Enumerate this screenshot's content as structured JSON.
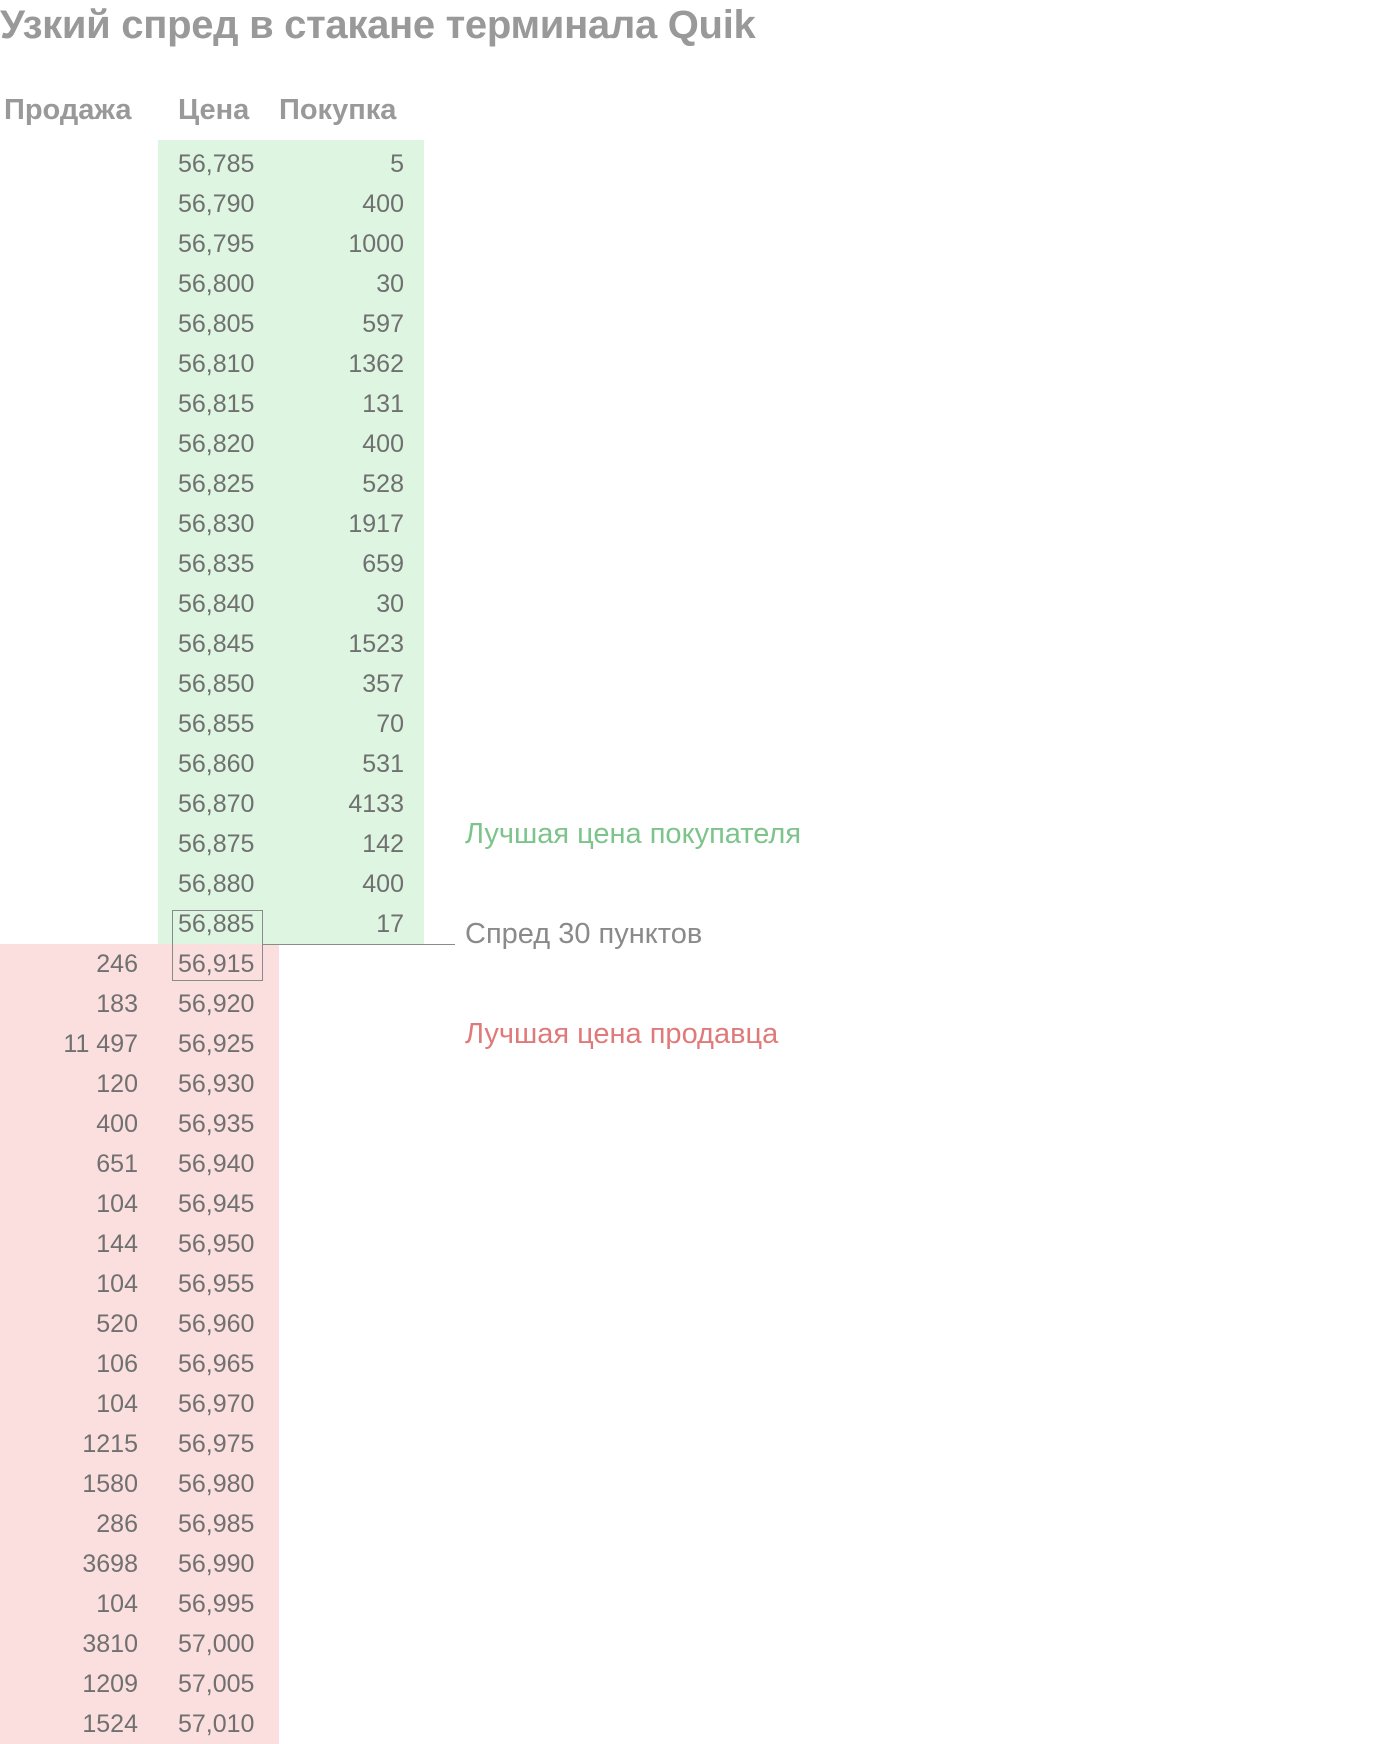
{
  "title": "Узкий спред в стакане терминала Quik",
  "headers": {
    "sell": "Продажа",
    "price": "Цена",
    "buy": "Покупка"
  },
  "bids": [
    {
      "price": "56,785",
      "qty": "5"
    },
    {
      "price": "56,790",
      "qty": "400"
    },
    {
      "price": "56,795",
      "qty": "1000"
    },
    {
      "price": "56,800",
      "qty": "30"
    },
    {
      "price": "56,805",
      "qty": "597"
    },
    {
      "price": "56,810",
      "qty": "1362"
    },
    {
      "price": "56,815",
      "qty": "131"
    },
    {
      "price": "56,820",
      "qty": "400"
    },
    {
      "price": "56,825",
      "qty": "528"
    },
    {
      "price": "56,830",
      "qty": "1917"
    },
    {
      "price": "56,835",
      "qty": "659"
    },
    {
      "price": "56,840",
      "qty": "30"
    },
    {
      "price": "56,845",
      "qty": "1523"
    },
    {
      "price": "56,850",
      "qty": "357"
    },
    {
      "price": "56,855",
      "qty": "70"
    },
    {
      "price": "56,860",
      "qty": "531"
    },
    {
      "price": "56,870",
      "qty": "4133"
    },
    {
      "price": "56,875",
      "qty": "142"
    },
    {
      "price": "56,880",
      "qty": "400"
    },
    {
      "price": "56,885",
      "qty": "17"
    }
  ],
  "asks": [
    {
      "qty": "246",
      "price": "56,915"
    },
    {
      "qty": "183",
      "price": "56,920"
    },
    {
      "qty": "11 497",
      "price": "56,925"
    },
    {
      "qty": "120",
      "price": "56,930"
    },
    {
      "qty": "400",
      "price": "56,935"
    },
    {
      "qty": "651",
      "price": "56,940"
    },
    {
      "qty": "104",
      "price": "56,945"
    },
    {
      "qty": "144",
      "price": "56,950"
    },
    {
      "qty": "104",
      "price": "56,955"
    },
    {
      "qty": "520",
      "price": "56,960"
    },
    {
      "qty": "106",
      "price": "56,965"
    },
    {
      "qty": "104",
      "price": "56,970"
    },
    {
      "qty": "1215",
      "price": "56,975"
    },
    {
      "qty": "1580",
      "price": "56,980"
    },
    {
      "qty": "286",
      "price": "56,985"
    },
    {
      "qty": "3698",
      "price": "56,990"
    },
    {
      "qty": "104",
      "price": "56,995"
    },
    {
      "qty": "3810",
      "price": "57,000"
    },
    {
      "qty": "1209",
      "price": "57,005"
    },
    {
      "qty": "1524",
      "price": "57,010"
    }
  ],
  "annotations": {
    "best_bid": "Лучшая цена покупателя",
    "spread": "Спред 30 пунктов",
    "best_ask": "Лучшая цена продавца"
  },
  "colors": {
    "bid_background": "#ddf5e1",
    "ask_background": "#fbdfdf",
    "bid_note": "#7cc48a",
    "ask_note": "#e07a7a",
    "spread_note": "#8a8a8a",
    "text": "#707070",
    "heading": "#999999"
  }
}
